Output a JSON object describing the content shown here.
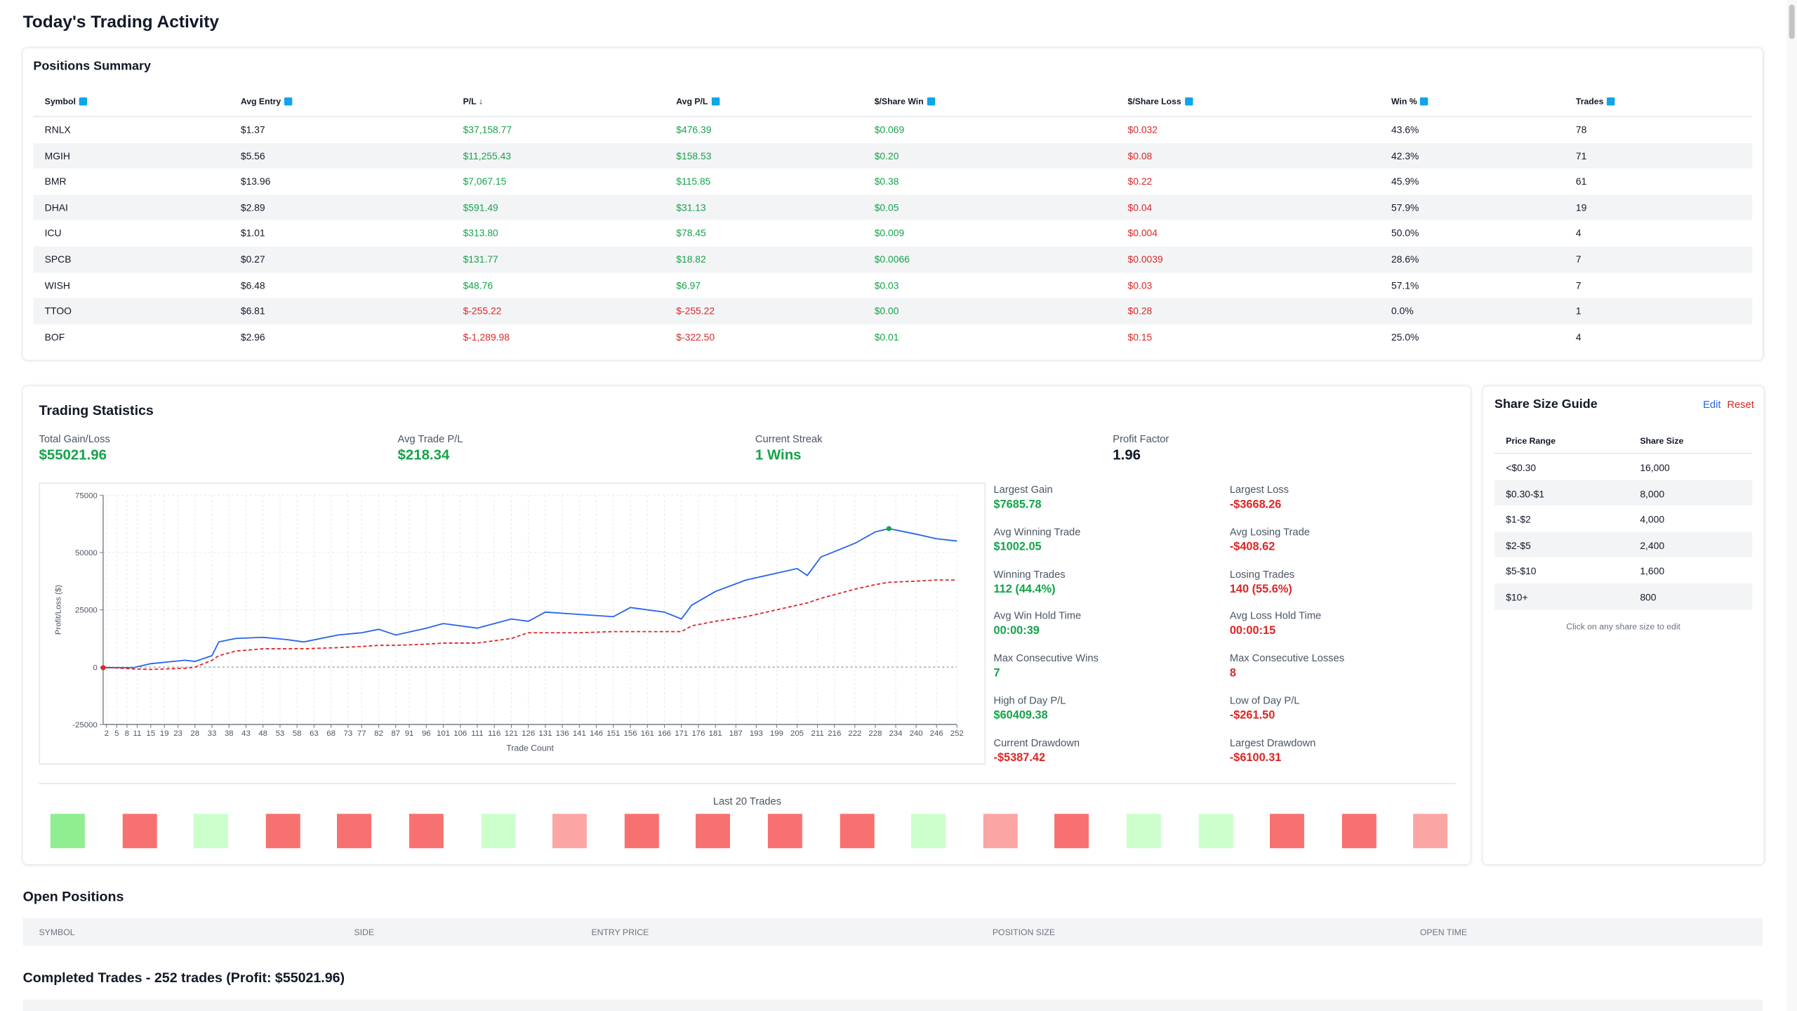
{
  "title": "Today's Trading Activity",
  "positions_summary": {
    "title": "Positions Summary",
    "headers": [
      "Symbol",
      "Avg Entry",
      "P/L ↓",
      "Avg P/L",
      "$/Share Win",
      "$/Share Loss",
      "Win %",
      "Trades"
    ],
    "rows": [
      [
        "RNLX",
        "$1.37",
        "$37,158.77",
        "$476.39",
        "$0.069",
        "$0.032",
        "43.6%",
        "78"
      ],
      [
        "MGIH",
        "$5.56",
        "$11,255.43",
        "$158.53",
        "$0.20",
        "$0.08",
        "42.3%",
        "71"
      ],
      [
        "BMR",
        "$13.96",
        "$7,067.15",
        "$115.85",
        "$0.38",
        "$0.22",
        "45.9%",
        "61"
      ],
      [
        "DHAI",
        "$2.89",
        "$591.49",
        "$31.13",
        "$0.05",
        "$0.04",
        "57.9%",
        "19"
      ],
      [
        "ICU",
        "$1.01",
        "$313.80",
        "$78.45",
        "$0.009",
        "$0.004",
        "50.0%",
        "4"
      ],
      [
        "SPCB",
        "$0.27",
        "$131.77",
        "$18.82",
        "$0.0066",
        "$0.0039",
        "28.6%",
        "7"
      ],
      [
        "WISH",
        "$6.48",
        "$48.76",
        "$6.97",
        "$0.03",
        "$0.03",
        "57.1%",
        "7"
      ],
      [
        "TTOO",
        "$6.81",
        "$-255.22",
        "$-255.22",
        "$0.00",
        "$0.28",
        "0.0%",
        "1"
      ],
      [
        "BOF",
        "$2.96",
        "$-1,289.98",
        "$-322.50",
        "$0.01",
        "$0.15",
        "25.0%",
        "4"
      ]
    ]
  },
  "trading_statistics": {
    "title": "Trading Statistics",
    "summary": [
      {
        "label": "Total Gain/Loss",
        "value": "$55021.96",
        "color": "#16a34a"
      },
      {
        "label": "Avg Trade P/L",
        "value": "$218.34",
        "color": "#16a34a"
      },
      {
        "label": "Current Streak",
        "value": "1 Wins",
        "color": "#16a34a"
      },
      {
        "label": "Profit Factor",
        "value": "1.96",
        "color": "#111827"
      }
    ],
    "details": [
      {
        "label": "Largest Gain",
        "value": "$7685.78",
        "color": "#16a34a"
      },
      {
        "label": "Largest Loss",
        "value": "-$3668.26",
        "color": "#dc2626"
      },
      {
        "label": "Avg Winning Trade",
        "value": "$1002.05",
        "color": "#16a34a"
      },
      {
        "label": "Avg Losing Trade",
        "value": "-$408.62",
        "color": "#dc2626"
      },
      {
        "label": "Winning Trades",
        "value": "112 (44.4%)",
        "color": "#16a34a"
      },
      {
        "label": "Losing Trades",
        "value": "140 (55.6%)",
        "color": "#dc2626"
      },
      {
        "label": "Avg Win Hold Time",
        "value": "00:00:39",
        "color": "#16a34a"
      },
      {
        "label": "Avg Loss Hold Time",
        "value": "00:00:15",
        "color": "#dc2626"
      },
      {
        "label": "Max Consecutive Wins",
        "value": "7",
        "color": "#16a34a"
      },
      {
        "label": "Max Consecutive Losses",
        "value": "8",
        "color": "#dc2626"
      },
      {
        "label": "High of Day P/L",
        "value": "$60409.38",
        "color": "#16a34a"
      },
      {
        "label": "Low of Day P/L",
        "value": "-$261.50",
        "color": "#dc2626"
      },
      {
        "label": "Current Drawdown",
        "value": "-$5387.42",
        "color": "#dc2626"
      },
      {
        "label": "Largest Drawdown",
        "value": "-$6100.31",
        "color": "#dc2626"
      }
    ],
    "last_20_trades": {
      "title": "Last 20 Trades",
      "colors": [
        "#90ee90",
        "#f87171",
        "#ccffcc",
        "#f87171",
        "#f87171",
        "#f87171",
        "#ccffcc",
        "#fca5a5",
        "#f87171",
        "#f87171",
        "#f87171",
        "#f87171",
        "#ccffcc",
        "#fca5a5",
        "#f87171",
        "#ccffcc",
        "#ccffcc",
        "#f87171",
        "#f87171",
        "#fca5a5"
      ]
    }
  },
  "chart_data": {
    "type": "line",
    "x_label": "Trade Count",
    "y_label": "Profit/Loss ($)",
    "x": [
      1,
      10,
      15,
      25,
      28,
      33,
      35,
      40,
      48,
      55,
      60,
      70,
      77,
      82,
      87,
      96,
      101,
      111,
      121,
      126,
      131,
      141,
      151,
      156,
      166,
      171,
      174,
      181,
      190,
      199,
      205,
      208,
      212,
      222,
      228,
      232,
      240,
      246,
      252
    ],
    "series": [
      {
        "color": "#2563eb",
        "dash": false,
        "values": [
          -261.5,
          -200,
          1500,
          3000,
          2500,
          5000,
          11000,
          12500,
          13000,
          12000,
          11000,
          14000,
          15000,
          16500,
          14000,
          17000,
          19000,
          17000,
          21000,
          20000,
          24000,
          23000,
          22000,
          26000,
          24000,
          21000,
          27000,
          33000,
          38000,
          41000,
          43000,
          40000,
          48000,
          54000,
          59000,
          60409.38,
          58000,
          56000,
          55021.96
        ]
      },
      {
        "color": "#dc2626",
        "dash": true,
        "values": [
          0,
          -800,
          -1000,
          -500,
          0,
          3000,
          5000,
          7000,
          8000,
          8000,
          8000,
          8500,
          9000,
          9500,
          9500,
          10000,
          10500,
          10500,
          12500,
          15000,
          15000,
          15000,
          15500,
          15500,
          15500,
          15500,
          18000,
          20000,
          22000,
          25000,
          27000,
          28000,
          30000,
          34000,
          36000,
          37000,
          37500,
          38000,
          38000
        ]
      }
    ],
    "xlim": [
      1,
      252
    ],
    "ylim": [
      -25000,
      75000
    ],
    "xticks": [
      2,
      5,
      8,
      11,
      15,
      19,
      23,
      28,
      33,
      38,
      43,
      48,
      53,
      58,
      63,
      68,
      73,
      77,
      82,
      87,
      91,
      96,
      101,
      106,
      111,
      116,
      121,
      126,
      131,
      136,
      141,
      146,
      151,
      156,
      161,
      166,
      171,
      176,
      181,
      187,
      193,
      199,
      205,
      211,
      216,
      222,
      228,
      234,
      240,
      246,
      252
    ],
    "yticks": [
      -25000,
      0,
      25000,
      50000,
      75000
    ],
    "grid": true
  },
  "share_size_guide": {
    "title": "Share Size Guide",
    "edit": "Edit",
    "reset": "Reset",
    "headers": [
      "Price Range",
      "Share Size"
    ],
    "rows": [
      [
        "<$0.30",
        "16,000"
      ],
      [
        "$0.30-$1",
        "8,000"
      ],
      [
        "$1-$2",
        "4,000"
      ],
      [
        "$2-$5",
        "2,400"
      ],
      [
        "$5-$10",
        "1,600"
      ],
      [
        "$10+",
        "800"
      ]
    ],
    "note": "Click on any share size to edit"
  },
  "open_positions": {
    "title": "Open Positions",
    "headers": [
      "SYMBOL",
      "SIDE",
      "ENTRY PRICE",
      "POSITION SIZE",
      "OPEN TIME"
    ]
  },
  "completed_trades": {
    "title": "Completed Trades - 252 trades (Profit: $55021.96)"
  }
}
